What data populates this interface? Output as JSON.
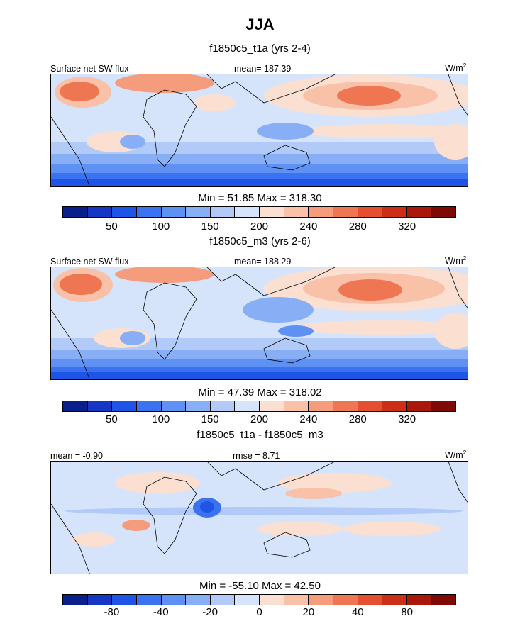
{
  "title": "JJA",
  "unit_base": "W/m",
  "unit_exp": "2",
  "panels": [
    {
      "subtitle": "f1850c5_t1a (yrs 2-4)",
      "left_label": "Surface net SW flux",
      "center_label": "mean= 187.39",
      "stats": "Min =  51.85 Max = 318.30"
    },
    {
      "subtitle": "f1850c5_m3 (yrs 2-6)",
      "left_label": "Surface net SW flux",
      "center_label": "mean= 188.29",
      "stats": "Min =  47.39 Max = 318.02"
    },
    {
      "subtitle": "f1850c5_t1a - f1850c5_m3",
      "left_label": "mean =  -0.90",
      "center_label": "rmse =   8.71",
      "stats": "Min = -55.10 Max =  42.50"
    }
  ],
  "colorbar_colors": [
    "#0b1f8a",
    "#1537c4",
    "#1e55e6",
    "#3a72f0",
    "#5f90f3",
    "#88aef6",
    "#b2caf8",
    "#d6e4fb",
    "#fbe0d2",
    "#f9c1a7",
    "#f49c7b",
    "#ef7652",
    "#e44f2f",
    "#cc2e18",
    "#a9180b",
    "#7f0a05"
  ],
  "colorbar_sw_ticks": [
    "50",
    "100",
    "150",
    "200",
    "240",
    "280",
    "320"
  ],
  "colorbar_diff_ticks": [
    "-80",
    "-40",
    "-20",
    "0",
    "20",
    "40",
    "80"
  ]
}
